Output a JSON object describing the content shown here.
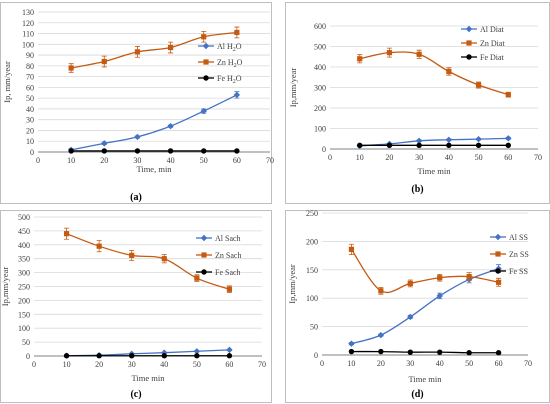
{
  "chart_data": [
    {
      "type": "line",
      "panel_label": "(a)",
      "xlabel": "Time, min",
      "ylabel": "Ip, mm/year",
      "xlim": [
        0,
        70
      ],
      "ylim": [
        0,
        130
      ],
      "xticks": [
        0,
        10,
        20,
        30,
        40,
        50,
        60,
        70
      ],
      "yticks": [
        0,
        10,
        20,
        30,
        40,
        50,
        60,
        70,
        80,
        90,
        100,
        110,
        120,
        130
      ],
      "legend_position": "right",
      "x": [
        10,
        20,
        30,
        40,
        50,
        60
      ],
      "series": [
        {
          "name": "Al H",
          "sub": "2",
          "suffix": "O",
          "color": "#4472c4",
          "marker": "diamond",
          "values": [
            2,
            8,
            14,
            24,
            38,
            53
          ],
          "errors": [
            1,
            1,
            1,
            1,
            2,
            3
          ]
        },
        {
          "name": "Zn H",
          "sub": "2",
          "suffix": "O",
          "color": "#c55a11",
          "marker": "square",
          "values": [
            78,
            84,
            93,
            97,
            107,
            111
          ],
          "errors": [
            4,
            5,
            5,
            5,
            5,
            5
          ]
        },
        {
          "name": "Fe H",
          "sub": "2",
          "suffix": "O",
          "color": "#000000",
          "marker": "circle",
          "values": [
            1,
            1,
            1,
            1,
            1,
            1
          ],
          "errors": [
            0,
            0,
            0,
            0,
            0,
            0
          ]
        }
      ]
    },
    {
      "type": "line",
      "panel_label": "(b)",
      "xlabel": "Time min",
      "ylabel": "Ip,mm/year",
      "xlim": [
        0,
        70
      ],
      "ylim": [
        0,
        600
      ],
      "xticks": [
        0,
        10,
        20,
        30,
        40,
        50,
        60,
        70
      ],
      "yticks": [
        0,
        100,
        200,
        300,
        400,
        500,
        600
      ],
      "legend_position": "top-right",
      "x": [
        10,
        20,
        30,
        40,
        50,
        60
      ],
      "series": [
        {
          "name": "Al Diat",
          "color": "#4472c4",
          "marker": "diamond",
          "values": [
            15,
            25,
            40,
            45,
            48,
            52
          ],
          "errors": [
            2,
            3,
            4,
            4,
            4,
            5
          ]
        },
        {
          "name": "Zn Diat",
          "color": "#c55a11",
          "marker": "square",
          "values": [
            440,
            470,
            462,
            378,
            312,
            265
          ],
          "errors": [
            20,
            22,
            20,
            18,
            15,
            12
          ]
        },
        {
          "name": "Fe Diat",
          "color": "#000000",
          "marker": "circle",
          "values": [
            18,
            18,
            18,
            18,
            18,
            18
          ],
          "errors": [
            0,
            0,
            0,
            0,
            0,
            0
          ]
        }
      ]
    },
    {
      "type": "line",
      "panel_label": "(c)",
      "xlabel": "Time min",
      "ylabel": "Ip,mm/year",
      "xlim": [
        0,
        70
      ],
      "ylim": [
        0,
        500
      ],
      "xticks": [
        0,
        10,
        20,
        30,
        40,
        50,
        60,
        70
      ],
      "yticks": [
        0,
        50,
        100,
        150,
        200,
        250,
        300,
        350,
        400,
        450,
        500
      ],
      "legend_position": "top-right",
      "x": [
        10,
        20,
        30,
        40,
        50,
        60
      ],
      "series": [
        {
          "name": "Al Sach",
          "color": "#4472c4",
          "marker": "diamond",
          "values": [
            1,
            3,
            8,
            12,
            17,
            22
          ],
          "errors": [
            0,
            1,
            1,
            1,
            2,
            2
          ]
        },
        {
          "name": "Zn Sach",
          "color": "#c55a11",
          "marker": "square",
          "values": [
            440,
            395,
            362,
            350,
            280,
            240
          ],
          "errors": [
            20,
            20,
            18,
            15,
            12,
            12
          ]
        },
        {
          "name": "Fe Sach",
          "color": "#000000",
          "marker": "circle",
          "values": [
            1,
            1,
            1,
            1,
            1,
            1
          ],
          "errors": [
            0,
            0,
            0,
            0,
            0,
            0
          ]
        }
      ]
    },
    {
      "type": "line",
      "panel_label": "(d)",
      "xlabel": "Time min",
      "ylabel": "Ip,mm/year",
      "xlim": [
        0,
        70
      ],
      "ylim": [
        0,
        250
      ],
      "xticks": [
        0,
        10,
        20,
        30,
        40,
        50,
        60,
        70
      ],
      "yticks": [
        0,
        50,
        100,
        150,
        200,
        250
      ],
      "legend_position": "top-right",
      "x": [
        10,
        20,
        30,
        40,
        50,
        60
      ],
      "series": [
        {
          "name": "Al SS",
          "color": "#4472c4",
          "marker": "diamond",
          "values": [
            20,
            35,
            67,
            104,
            133,
            152
          ],
          "errors": [
            2,
            2,
            3,
            5,
            6,
            7
          ]
        },
        {
          "name": "Zn SS",
          "color": "#c55a11",
          "marker": "square",
          "values": [
            186,
            113,
            126,
            136,
            138,
            128
          ],
          "errors": [
            9,
            6,
            6,
            6,
            7,
            7
          ]
        },
        {
          "name": "Fe SS",
          "color": "#000000",
          "marker": "circle",
          "values": [
            6,
            6,
            5,
            5,
            4,
            4
          ],
          "errors": [
            0,
            0,
            0,
            0,
            0,
            0
          ]
        }
      ]
    }
  ]
}
